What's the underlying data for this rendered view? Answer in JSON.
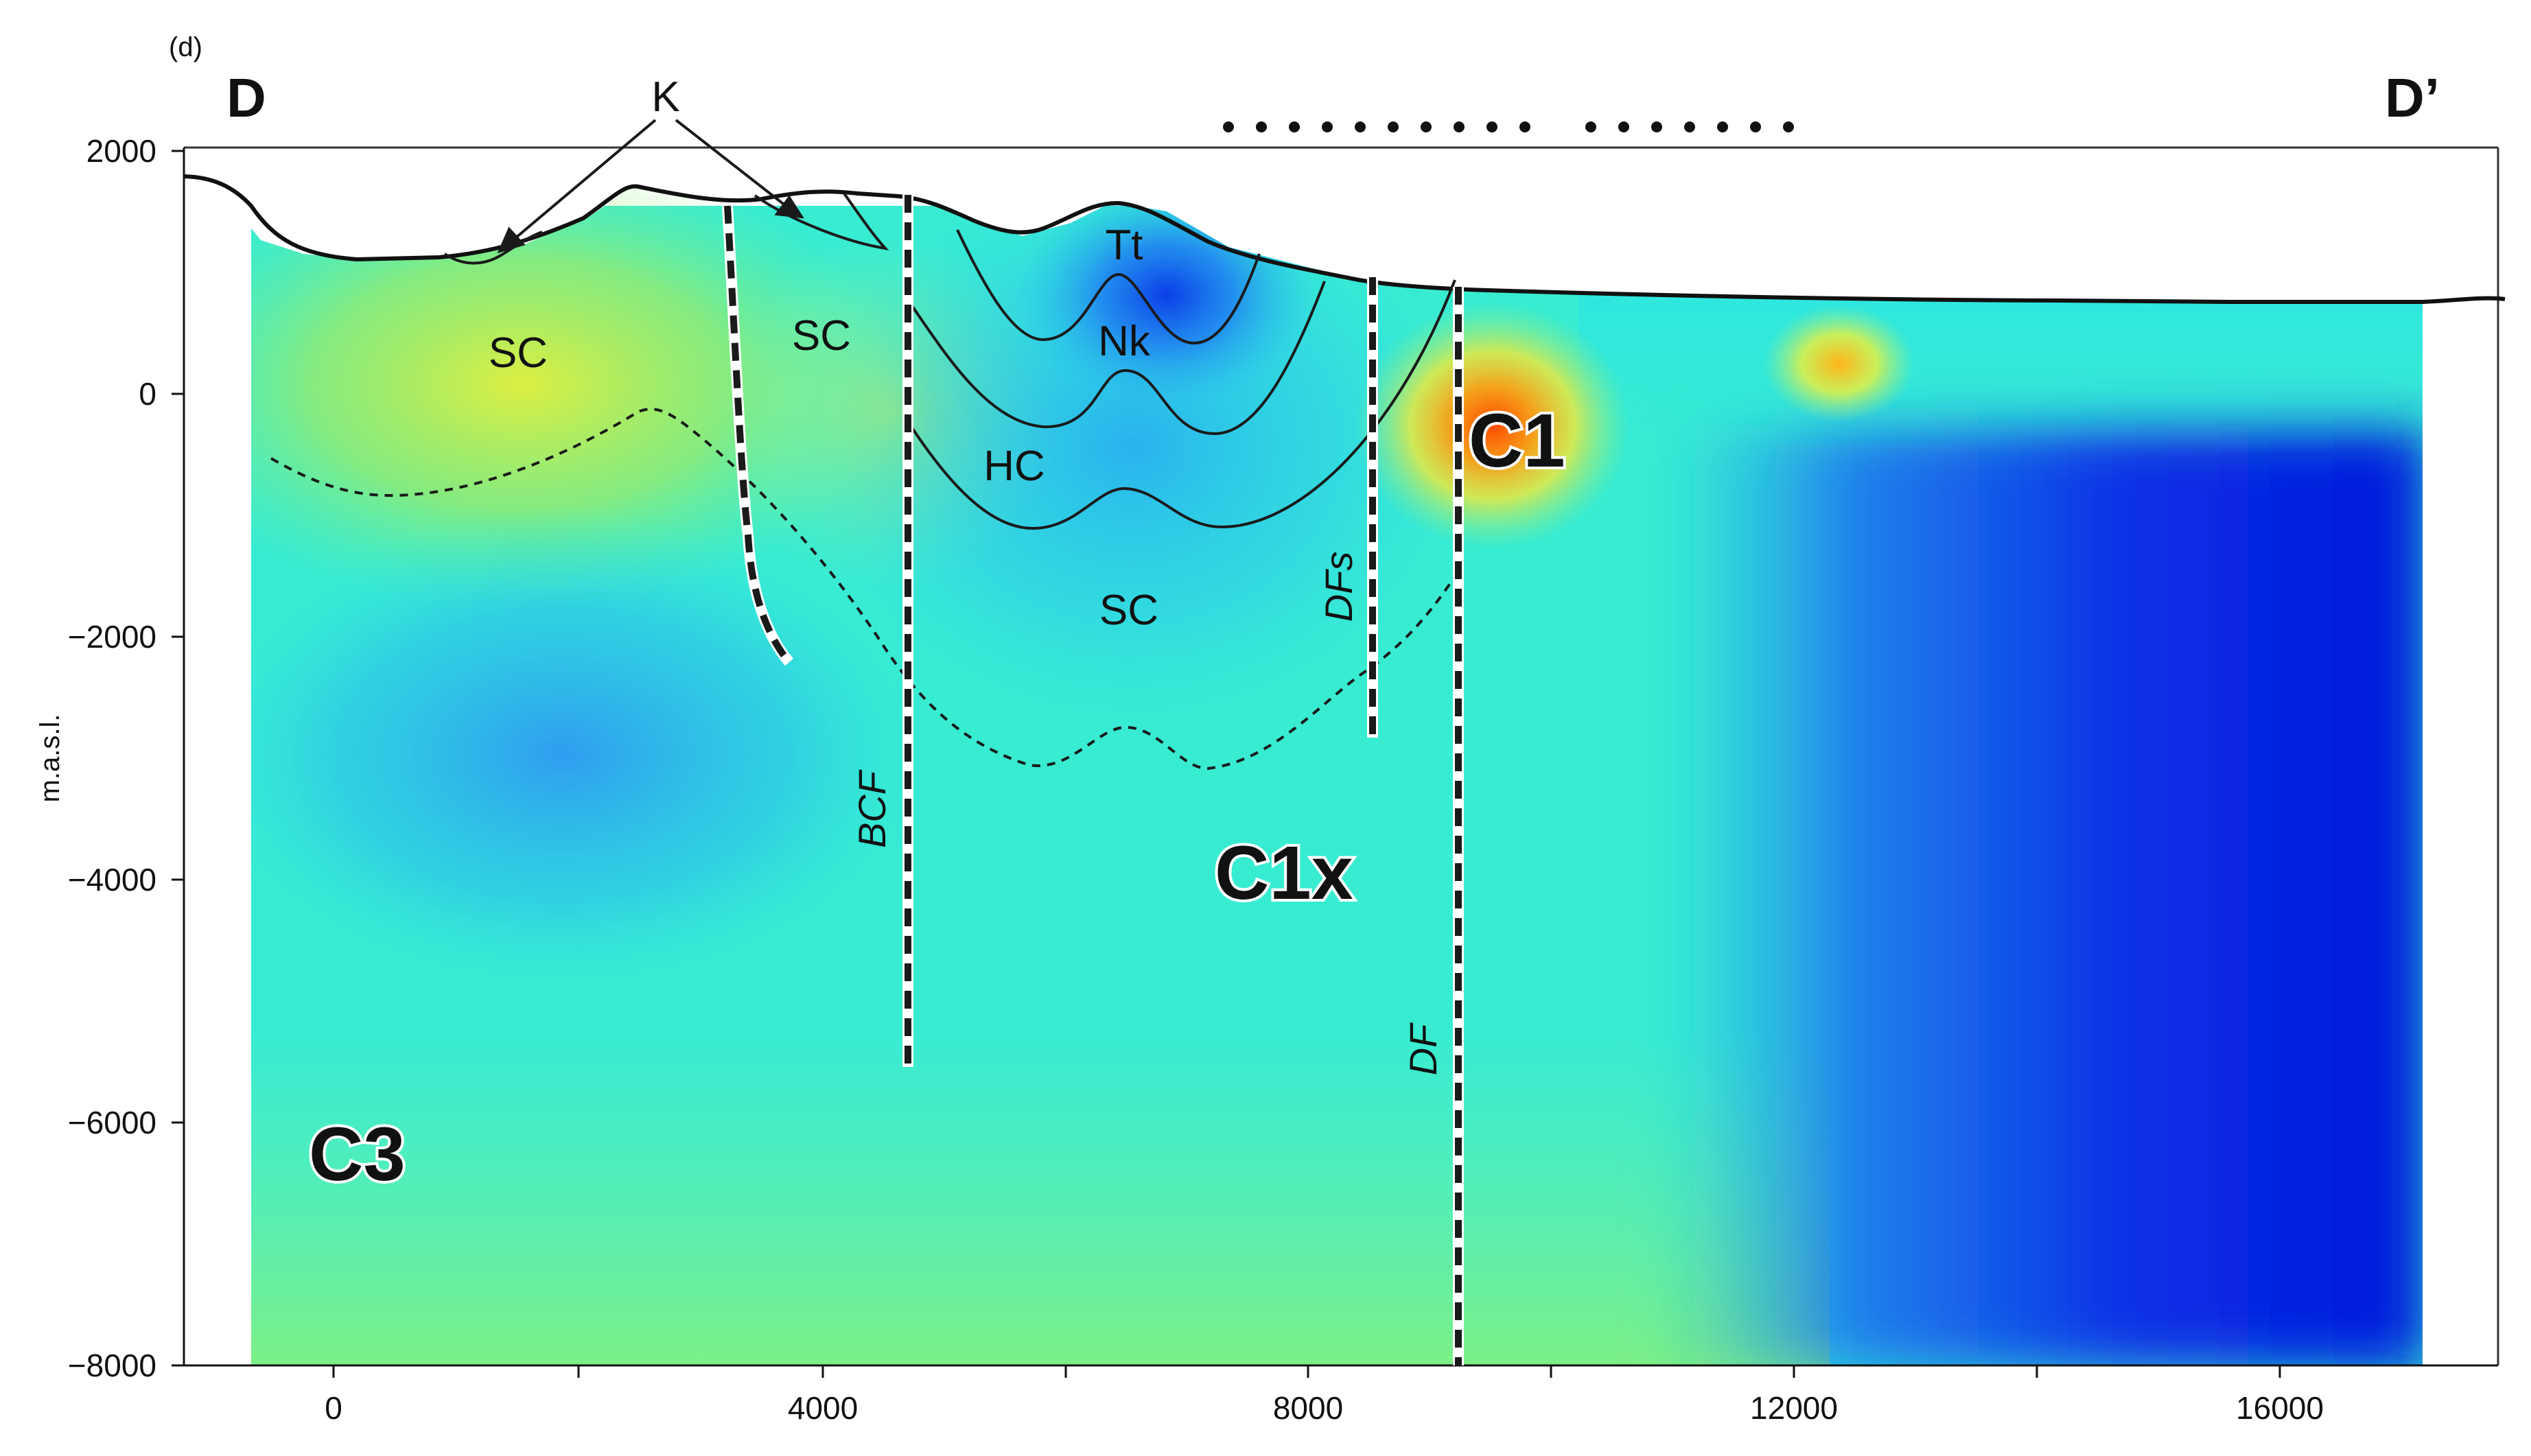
{
  "panel_label": "(d)",
  "profile": {
    "start_label": "D",
    "end_label": "D’"
  },
  "axes": {
    "y_label": "m.a.s.l.",
    "x_ticks": [
      "0",
      "4000",
      "8000",
      "12000",
      "16000"
    ],
    "y_ticks": [
      "2000",
      "0",
      "−2000",
      "−4000",
      "−6000",
      "−8000"
    ]
  },
  "units": [
    {
      "id": "sc-left",
      "label": "SC"
    },
    {
      "id": "sc-mid",
      "label": "SC"
    },
    {
      "id": "sc-lower",
      "label": "SC"
    },
    {
      "id": "tt",
      "label": "Tt"
    },
    {
      "id": "nk",
      "label": "Nk"
    },
    {
      "id": "hc",
      "label": "HC"
    },
    {
      "id": "k",
      "label": "K"
    }
  ],
  "faults": [
    {
      "id": "bcf",
      "label": "BCF"
    },
    {
      "id": "dfs",
      "label": "DFs"
    },
    {
      "id": "df",
      "label": "DF"
    }
  ],
  "anomalies": [
    {
      "id": "c1",
      "label": "C1"
    },
    {
      "id": "c1x",
      "label": "C1x"
    },
    {
      "id": "c3",
      "label": "C3"
    }
  ],
  "colors": {
    "conductive": "#ff4a00",
    "moderate": "#f0f53a",
    "intermediate": "#2ef0e6",
    "resistive": "#0018e0"
  }
}
